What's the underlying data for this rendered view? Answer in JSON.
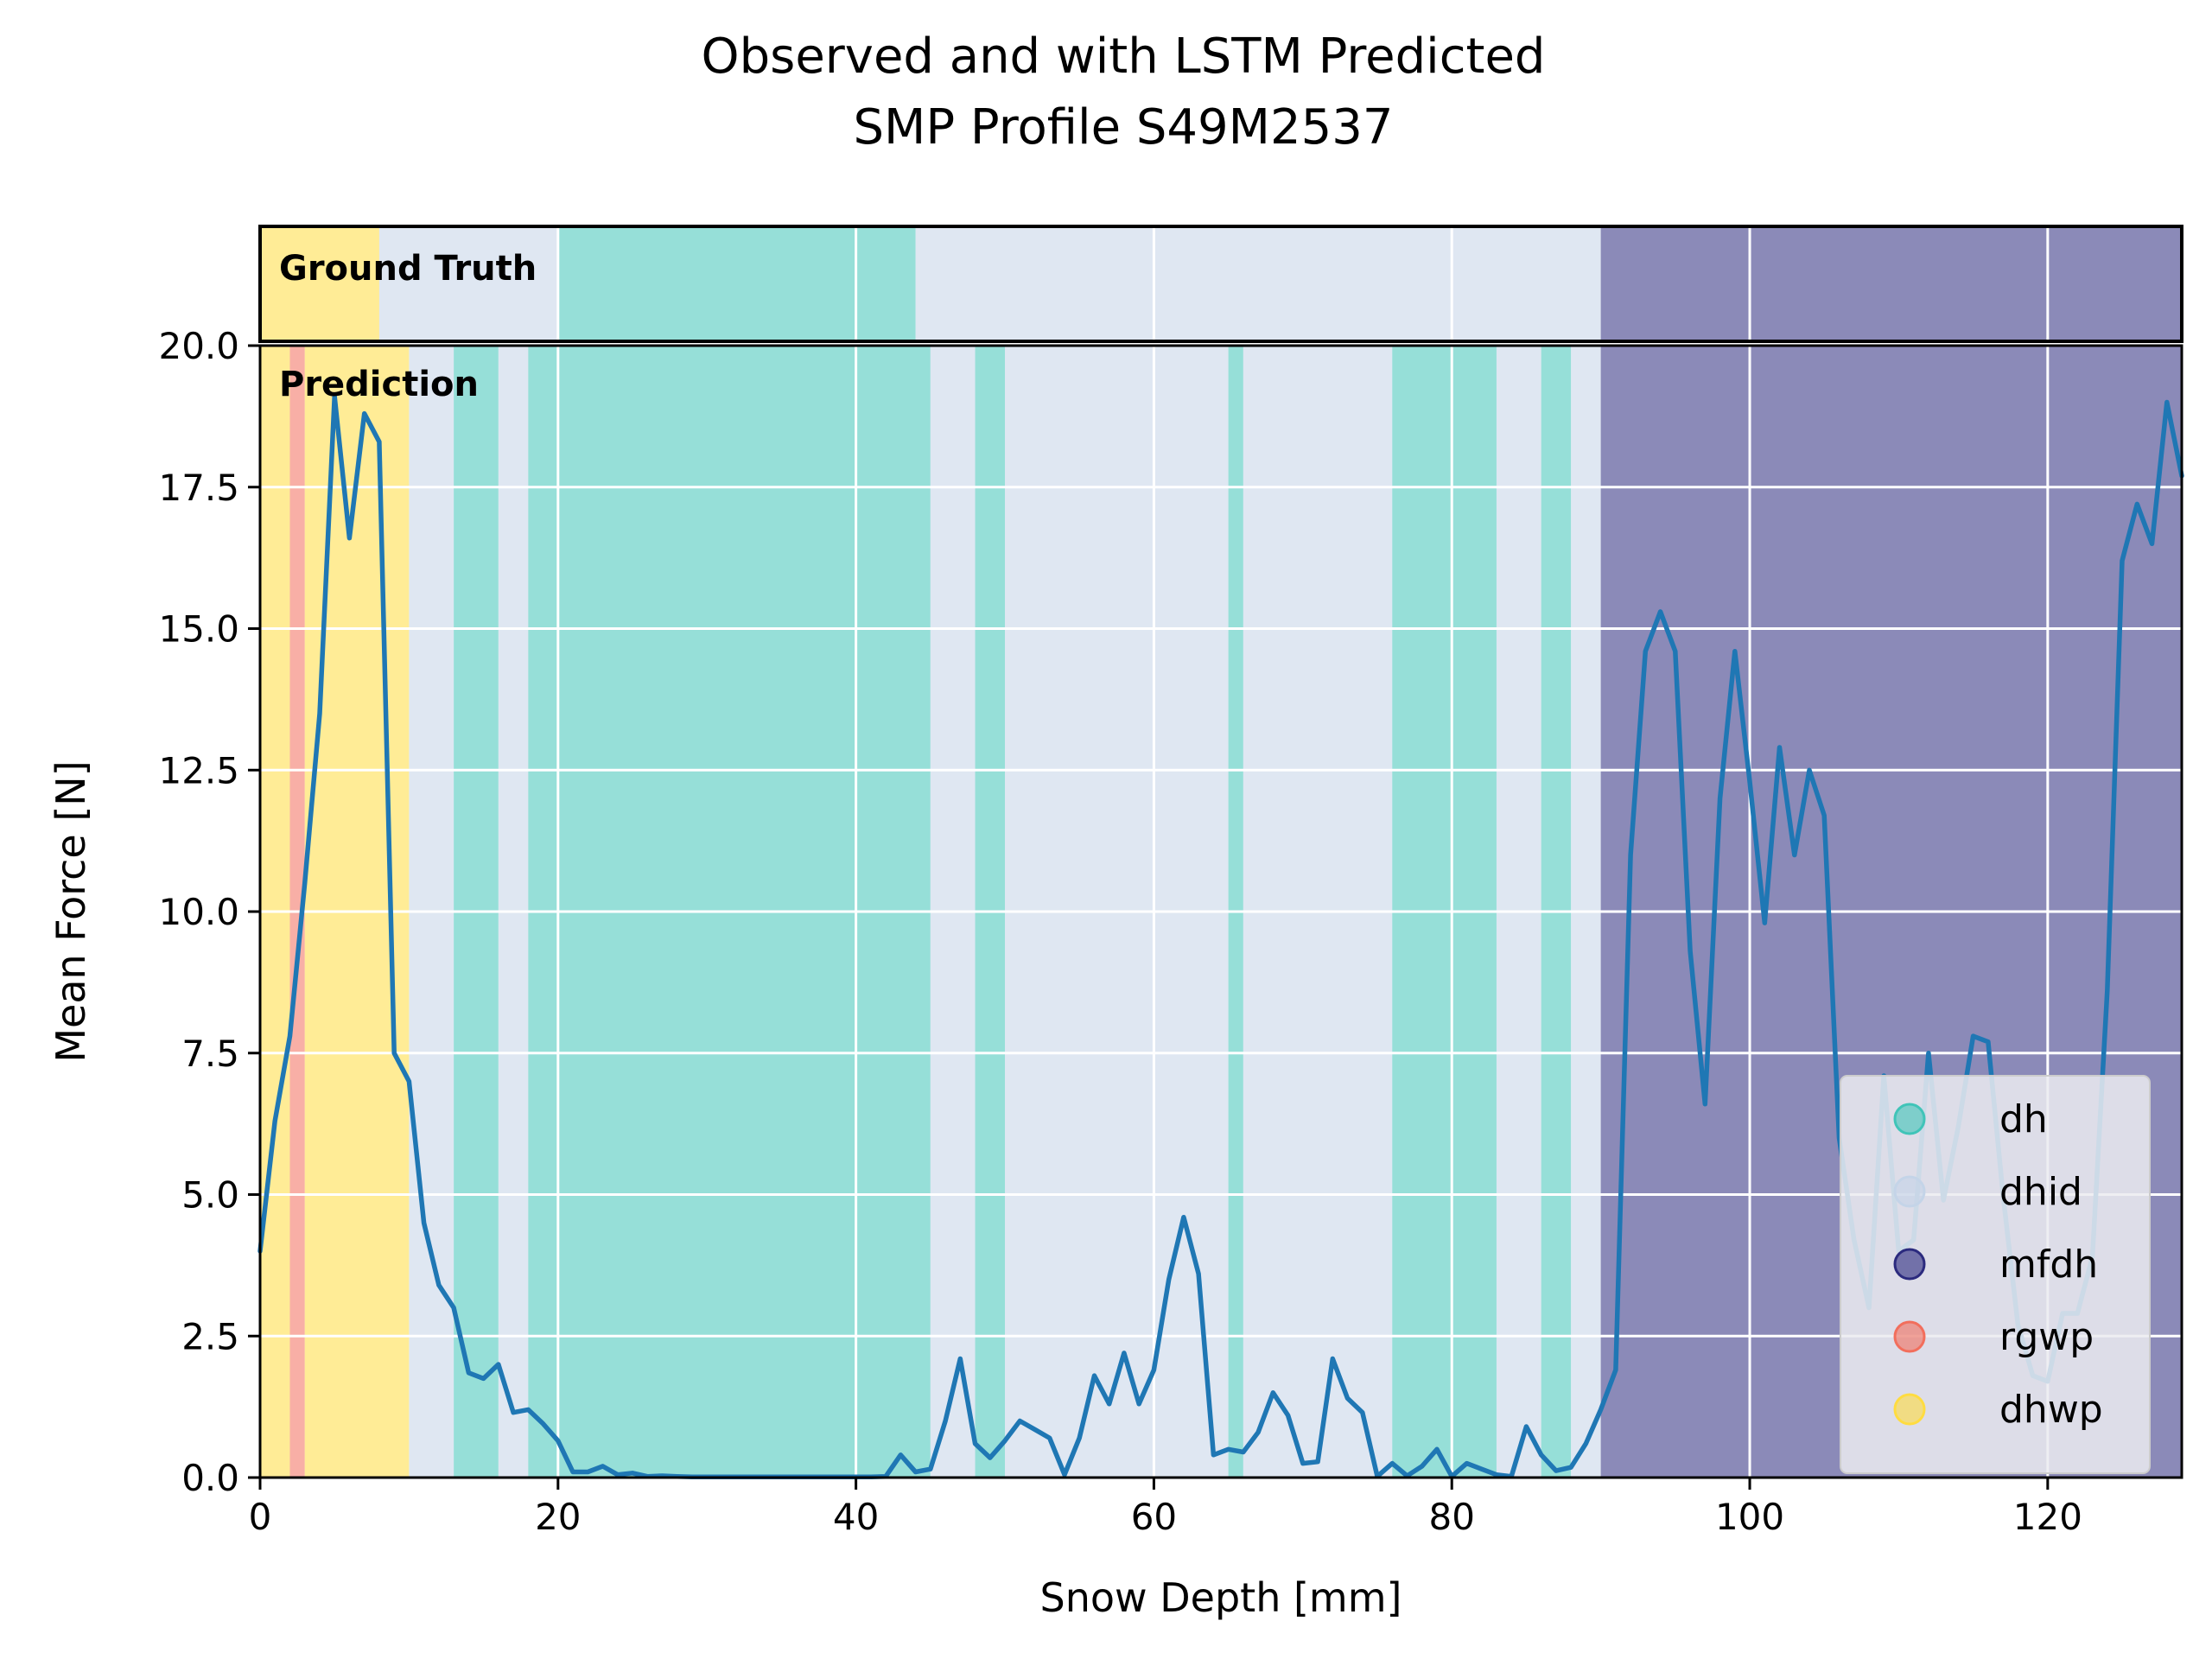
{
  "chart_data": {
    "type": "line",
    "title": "Observed and with LSTM Predicted",
    "subtitle": "SMP Profile S49M2537",
    "xlabel": "Snow Depth [mm]",
    "ylabel": "Mean Force [N]",
    "xlim": [
      0,
      129
    ],
    "ylim": [
      0,
      20
    ],
    "xticks": [
      0,
      20,
      40,
      60,
      80,
      100,
      120
    ],
    "yticks": [
      0.0,
      2.5,
      5.0,
      7.5,
      10.0,
      12.5,
      15.0,
      17.5,
      20.0
    ],
    "grid": true,
    "legend_placement": "bottom-right",
    "panel_labels": {
      "ground_truth": "Ground Truth",
      "prediction": "Prediction"
    },
    "classes": [
      {
        "name": "dh",
        "color": "#40c4b8"
      },
      {
        "name": "dhid",
        "color": "#c4d4e8"
      },
      {
        "name": "mfdh",
        "color": "#2b2a7e"
      },
      {
        "name": "rgwp",
        "color": "#f26e5c"
      },
      {
        "name": "dhwp",
        "color": "#ffdc40"
      }
    ],
    "ground_truth_segments": [
      {
        "start": 0,
        "end": 8,
        "class": "dhwp"
      },
      {
        "start": 8,
        "end": 20,
        "class": "dhid"
      },
      {
        "start": 20,
        "end": 44,
        "class": "dh"
      },
      {
        "start": 44,
        "end": 90,
        "class": "dhid"
      },
      {
        "start": 90,
        "end": 129,
        "class": "mfdh"
      }
    ],
    "prediction_segments": [
      {
        "start": 0,
        "end": 2,
        "class": "dhwp"
      },
      {
        "start": 2,
        "end": 3,
        "class": "rgwp"
      },
      {
        "start": 3,
        "end": 10,
        "class": "dhwp"
      },
      {
        "start": 10,
        "end": 13,
        "class": "dhid"
      },
      {
        "start": 13,
        "end": 16,
        "class": "dh"
      },
      {
        "start": 16,
        "end": 18,
        "class": "dhid"
      },
      {
        "start": 18,
        "end": 45,
        "class": "dh"
      },
      {
        "start": 45,
        "end": 48,
        "class": "dhid"
      },
      {
        "start": 48,
        "end": 50,
        "class": "dh"
      },
      {
        "start": 50,
        "end": 65,
        "class": "dhid"
      },
      {
        "start": 65,
        "end": 66,
        "class": "dh"
      },
      {
        "start": 66,
        "end": 76,
        "class": "dhid"
      },
      {
        "start": 76,
        "end": 83,
        "class": "dh"
      },
      {
        "start": 83,
        "end": 86,
        "class": "dhid"
      },
      {
        "start": 86,
        "end": 88,
        "class": "dh"
      },
      {
        "start": 88,
        "end": 90,
        "class": "dhid"
      },
      {
        "start": 90,
        "end": 129,
        "class": "mfdh"
      }
    ],
    "series": [
      {
        "color": "#1f77b4",
        "x": [
          0,
          1,
          2,
          3,
          4,
          5,
          6,
          7,
          8,
          9,
          10,
          11,
          12,
          13,
          14,
          15,
          16,
          17,
          18,
          19,
          20,
          21,
          22,
          23,
          24,
          25,
          26,
          27,
          28,
          29,
          30,
          31,
          32,
          33,
          34,
          35,
          36,
          37,
          38,
          39,
          40,
          41,
          42,
          43,
          44,
          45,
          46,
          47,
          48,
          49,
          50,
          51,
          52,
          53,
          54,
          55,
          56,
          57,
          58,
          59,
          60,
          61,
          62,
          63,
          64,
          65,
          66,
          67,
          68,
          69,
          70,
          71,
          72,
          73,
          74,
          75,
          76,
          77,
          78,
          79,
          80,
          81,
          82,
          83,
          84,
          85,
          86,
          87,
          88,
          89,
          90,
          91,
          92,
          93,
          94,
          95,
          96,
          97,
          98,
          99,
          100,
          101,
          102,
          103,
          104,
          105,
          106,
          107,
          108,
          109,
          110,
          111,
          112,
          113,
          114,
          115,
          116,
          117,
          118,
          119,
          120,
          121,
          122,
          123,
          124,
          125,
          126,
          127,
          128,
          129
        ],
        "y": [
          4.0,
          6.3,
          7.8,
          10.5,
          13.5,
          19.1,
          16.6,
          18.8,
          18.3,
          7.5,
          7.0,
          4.5,
          3.4,
          3.0,
          1.85,
          1.75,
          2.0,
          1.15,
          1.2,
          0.95,
          0.65,
          0.1,
          0.1,
          0.2,
          0.05,
          0.08,
          0.02,
          0.03,
          0.02,
          0.01,
          0.01,
          0.01,
          0.01,
          0.01,
          0.01,
          0.01,
          0.01,
          0.01,
          0.01,
          0.01,
          0.01,
          0.01,
          0.02,
          0.4,
          0.1,
          0.15,
          1.0,
          2.1,
          0.6,
          0.35,
          0.65,
          1.0,
          0.85,
          0.7,
          0.05,
          0.7,
          1.8,
          1.3,
          2.2,
          1.3,
          1.9,
          3.5,
          4.6,
          3.6,
          0.4,
          0.5,
          0.45,
          0.8,
          1.5,
          1.1,
          0.25,
          0.28,
          2.1,
          1.4,
          1.15,
          0.02,
          0.25,
          0.03,
          0.2,
          0.5,
          0.02,
          0.25,
          0.15,
          0.05,
          0.02,
          0.9,
          0.4,
          0.12,
          0.18,
          0.6,
          1.2,
          1.9,
          11.0,
          14.6,
          15.3,
          14.6,
          9.3,
          6.6,
          12.0,
          14.6,
          12.3,
          9.8,
          12.9,
          11.0,
          12.5,
          11.7,
          6.0,
          4.2,
          3.0,
          7.1,
          4.0,
          4.2,
          7.5,
          4.9,
          6.2,
          7.8,
          7.7,
          5.0,
          2.7,
          1.8,
          1.7,
          2.9,
          2.9,
          3.9,
          8.6,
          16.2,
          17.2,
          16.5,
          19.0,
          17.7
        ]
      }
    ]
  }
}
